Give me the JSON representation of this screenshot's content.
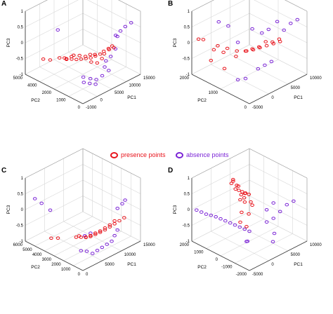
{
  "legend": {
    "presence_label": "presence points",
    "absence_label": "absence points",
    "presence_color": "#e8141c",
    "absence_color": "#7b24d6"
  },
  "panel_letters": [
    "A",
    "B",
    "C",
    "D"
  ],
  "chart_data": [
    {
      "type": "scatter",
      "panel": "A",
      "xlabel": "PC1",
      "ylabel": "PC2",
      "zlabel": "PC3",
      "xlim": [
        -1000,
        15000
      ],
      "ylim": [
        0,
        5000
      ],
      "zlim": [
        -1,
        1
      ],
      "x_ticks": [
        "-1000",
        "0",
        "5000",
        "10000",
        "15000"
      ],
      "y_ticks": [
        "0",
        "1000",
        "2000",
        "4000",
        "5000"
      ],
      "z_ticks": [
        "-1",
        "-0.5",
        "0",
        "0.5",
        "1"
      ],
      "grid": true,
      "series": [
        {
          "name": "presence points",
          "points": [
            [
              200,
              1800,
              0.02
            ],
            [
              1000,
              1600,
              0.0
            ],
            [
              2000,
              1500,
              -0.05
            ],
            [
              3000,
              1400,
              -0.08
            ],
            [
              4000,
              1300,
              -0.1
            ],
            [
              5000,
              1200,
              -0.12
            ],
            [
              6000,
              1100,
              -0.1
            ],
            [
              7000,
              1000,
              -0.08
            ],
            [
              8000,
              1000,
              -0.05
            ],
            [
              9000,
              900,
              0.0
            ],
            [
              10000,
              900,
              0.02
            ],
            [
              3500,
              1700,
              -0.05
            ],
            [
              4500,
              1500,
              -0.1
            ],
            [
              5500,
              1400,
              -0.08
            ],
            [
              6500,
              1300,
              -0.12
            ],
            [
              2500,
              1900,
              -0.02
            ],
            [
              500,
              2500,
              -0.1
            ],
            [
              1500,
              2200,
              -0.15
            ],
            [
              7500,
              800,
              -0.06
            ],
            [
              8500,
              700,
              0.03
            ],
            [
              -500,
              3000,
              -0.2
            ],
            [
              -800,
              3500,
              -0.25
            ],
            [
              4200,
              900,
              -0.15
            ],
            [
              5200,
              700,
              -0.2
            ],
            [
              6200,
              600,
              -0.1
            ],
            [
              3200,
              2300,
              -0.18
            ],
            [
              2200,
              2600,
              -0.22
            ],
            [
              9500,
              600,
              0.05
            ]
          ]
        },
        {
          "name": "absence points",
          "points": [
            [
              12000,
              800,
              0.4
            ],
            [
              13000,
              700,
              0.5
            ],
            [
              11000,
              900,
              0.3
            ],
            [
              10500,
              600,
              0.35
            ],
            [
              6000,
              300,
              -0.3
            ],
            [
              5000,
              200,
              -0.5
            ],
            [
              4000,
              400,
              -0.6
            ],
            [
              3000,
              600,
              -0.55
            ],
            [
              2000,
              900,
              -0.5
            ],
            [
              1000,
              2800,
              0.7
            ],
            [
              7000,
              500,
              -0.2
            ],
            [
              8000,
              400,
              -0.1
            ],
            [
              9000,
              300,
              0.1
            ],
            [
              14000,
              500,
              0.6
            ],
            [
              3500,
              300,
              -0.7
            ],
            [
              2500,
              500,
              -0.65
            ],
            [
              1500,
              700,
              -0.6
            ],
            [
              6500,
              100,
              -0.4
            ]
          ]
        }
      ]
    },
    {
      "type": "scatter",
      "panel": "B",
      "xlabel": "PC1",
      "ylabel": "PC2",
      "zlabel": "PC3",
      "xlim": [
        -5000,
        10000
      ],
      "ylim": [
        0,
        2000
      ],
      "zlim": [
        -1,
        1
      ],
      "x_ticks": [
        "-5000",
        "0",
        "5000",
        "10000"
      ],
      "y_ticks": [
        "0",
        "1000",
        "2000"
      ],
      "z_ticks": [
        "-1",
        "-0.5",
        "0",
        "0.5",
        "1"
      ],
      "grid": true,
      "series": [
        {
          "name": "presence points",
          "points": [
            [
              -4000,
              1900,
              0.1
            ],
            [
              -3500,
              1800,
              0.1
            ],
            [
              -2000,
              1500,
              -0.05
            ],
            [
              -1000,
              1300,
              -0.1
            ],
            [
              0,
              1100,
              -0.15
            ],
            [
              1000,
              900,
              -0.12
            ],
            [
              2000,
              800,
              -0.1
            ],
            [
              3000,
              700,
              -0.05
            ],
            [
              4000,
              600,
              0.0
            ],
            [
              5000,
              500,
              0.05
            ],
            [
              6000,
              400,
              0.1
            ],
            [
              -1500,
              1700,
              -0.3
            ],
            [
              -500,
              1500,
              -0.35
            ],
            [
              500,
              1200,
              -0.4
            ],
            [
              1500,
              1000,
              -0.2
            ],
            [
              2500,
              900,
              -0.15
            ],
            [
              3500,
              800,
              -0.1
            ],
            [
              -3000,
              1600,
              -0.5
            ],
            [
              -2500,
              1200,
              -0.6
            ],
            [
              4500,
              700,
              0.05
            ],
            [
              5500,
              600,
              0.02
            ],
            [
              6500,
              500,
              0.1
            ]
          ]
        },
        {
          "name": "absence points",
          "points": [
            [
              8000,
              300,
              0.6
            ],
            [
              9000,
              200,
              0.7
            ],
            [
              7000,
              400,
              0.4
            ],
            [
              6000,
              800,
              0.3
            ],
            [
              5000,
              900,
              0.2
            ],
            [
              0,
              1400,
              0.5
            ],
            [
              -1000,
              1600,
              0.6
            ],
            [
              -2000,
              800,
              -0.8
            ],
            [
              -1500,
              600,
              -0.7
            ],
            [
              1000,
              500,
              -0.5
            ],
            [
              2000,
              400,
              -0.4
            ],
            [
              3000,
              300,
              -0.3
            ],
            [
              7500,
              700,
              0.5
            ],
            [
              -500,
              1000,
              0.2
            ],
            [
              4000,
              1100,
              0.3
            ]
          ]
        }
      ]
    },
    {
      "type": "scatter",
      "panel": "C",
      "xlabel": "PC1",
      "ylabel": "PC2",
      "zlabel": "PC3",
      "xlim": [
        0,
        15000
      ],
      "ylim": [
        0,
        6000
      ],
      "zlim": [
        -1,
        1
      ],
      "x_ticks": [
        "0",
        "5000",
        "10000",
        "15000"
      ],
      "y_ticks": [
        "0",
        "1000",
        "2000",
        "3000",
        "4000",
        "5000",
        "6000"
      ],
      "z_ticks": [
        "-1",
        "-0.5",
        "0",
        "0.5",
        "1"
      ],
      "grid": true,
      "series": [
        {
          "name": "presence points",
          "points": [
            [
              2000,
              1500,
              -0.3
            ],
            [
              3000,
              1400,
              -0.35
            ],
            [
              4000,
              1300,
              -0.4
            ],
            [
              5000,
              1200,
              -0.42
            ],
            [
              6000,
              1100,
              -0.4
            ],
            [
              7000,
              1000,
              -0.38
            ],
            [
              8000,
              900,
              -0.35
            ],
            [
              9000,
              800,
              -0.3
            ],
            [
              10000,
              700,
              -0.25
            ],
            [
              11000,
              600,
              -0.2
            ],
            [
              12000,
              500,
              -0.15
            ],
            [
              4500,
              1500,
              -0.45
            ],
            [
              5500,
              1400,
              -0.45
            ],
            [
              6500,
              1300,
              -0.42
            ],
            [
              7500,
              1200,
              -0.4
            ],
            [
              3500,
              1800,
              -0.4
            ],
            [
              1000,
              3000,
              -0.5
            ],
            [
              500,
              3500,
              -0.55
            ],
            [
              8500,
              1100,
              -0.35
            ],
            [
              9500,
              1000,
              -0.3
            ],
            [
              10500,
              900,
              -0.22
            ]
          ]
        },
        {
          "name": "absence points",
          "points": [
            [
              13000,
              800,
              0.3
            ],
            [
              12500,
              900,
              0.2
            ],
            [
              11500,
              1000,
              0.1
            ],
            [
              500,
              4500,
              0.4
            ],
            [
              0,
              5000,
              0.5
            ],
            [
              1500,
              4000,
              0.2
            ],
            [
              3000,
              800,
              -0.7
            ],
            [
              4000,
              600,
              -0.8
            ],
            [
              5000,
              500,
              -0.75
            ],
            [
              6000,
              400,
              -0.7
            ],
            [
              7000,
              300,
              -0.65
            ],
            [
              8000,
              200,
              -0.6
            ],
            [
              2000,
              1000,
              -0.65
            ],
            [
              9000,
              300,
              -0.5
            ],
            [
              10000,
              400,
              -0.4
            ],
            [
              6500,
              1800,
              -0.5
            ],
            [
              5500,
              2000,
              -0.55
            ]
          ]
        }
      ]
    },
    {
      "type": "scatter",
      "panel": "D",
      "xlabel": "PC1",
      "ylabel": "PC2",
      "zlabel": "PC3",
      "xlim": [
        -5000,
        10000
      ],
      "ylim": [
        -2000,
        2000
      ],
      "zlim": [
        -1,
        1
      ],
      "x_ticks": [
        "-5000",
        "0",
        "5000",
        "10000"
      ],
      "y_ticks": [
        "-2000",
        "-1000",
        "0",
        "1000",
        "2000"
      ],
      "z_ticks": [
        "-1",
        "-0.5",
        "0",
        "0.5",
        "1"
      ],
      "grid": true,
      "series": [
        {
          "name": "presence points",
          "points": [
            [
              2000,
              600,
              0.5
            ],
            [
              2500,
              500,
              0.45
            ],
            [
              3000,
              400,
              0.4
            ],
            [
              3500,
              300,
              0.35
            ],
            [
              1500,
              700,
              0.55
            ],
            [
              2200,
              800,
              0.6
            ],
            [
              2800,
              650,
              0.3
            ],
            [
              3200,
              550,
              0.2
            ],
            [
              1800,
              450,
              0.25
            ],
            [
              2600,
              350,
              0.15
            ],
            [
              3800,
              250,
              0.1
            ],
            [
              1200,
              900,
              0.7
            ],
            [
              2000,
              1000,
              0.75
            ],
            [
              4000,
              200,
              0.0
            ],
            [
              3000,
              900,
              0.5
            ],
            [
              2400,
              1100,
              0.65
            ],
            [
              1600,
              300,
              -0.1
            ],
            [
              2900,
              150,
              -0.2
            ],
            [
              3600,
              600,
              0.3
            ],
            [
              500,
              100,
              -0.3
            ],
            [
              1000,
              -200,
              -0.4
            ]
          ]
        },
        {
          "name": "absence points",
          "points": [
            [
              -4500,
              1800,
              0.0
            ],
            [
              -4000,
              1600,
              -0.05
            ],
            [
              -3500,
              1400,
              -0.1
            ],
            [
              -3000,
              1200,
              -0.12
            ],
            [
              -2500,
              1000,
              -0.15
            ],
            [
              -2000,
              800,
              -0.2
            ],
            [
              -1500,
              600,
              -0.25
            ],
            [
              -1000,
              400,
              -0.3
            ],
            [
              -500,
              200,
              -0.35
            ],
            [
              0,
              0,
              -0.4
            ],
            [
              500,
              -200,
              -0.45
            ],
            [
              1000,
              -400,
              -0.5
            ],
            [
              4000,
              -800,
              -0.3
            ],
            [
              5000,
              -1000,
              -0.2
            ],
            [
              6000,
              -1200,
              0.0
            ],
            [
              7000,
              -1400,
              0.2
            ],
            [
              8000,
              -1600,
              0.3
            ],
            [
              4500,
              -1200,
              -0.6
            ],
            [
              3000,
              -1500,
              -0.7
            ],
            [
              -1000,
              -800,
              -0.6
            ],
            [
              -2000,
              -1000,
              -0.5
            ],
            [
              6500,
              -600,
              0.1
            ],
            [
              5500,
              -400,
              -0.1
            ]
          ]
        }
      ]
    }
  ]
}
